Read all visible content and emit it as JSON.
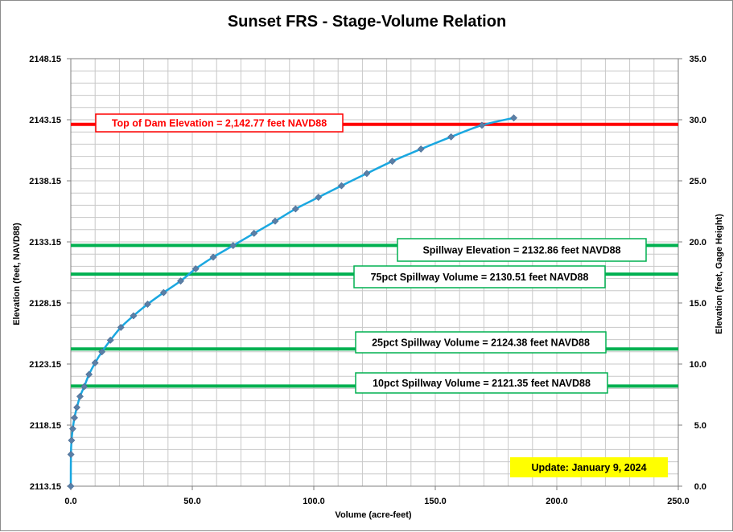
{
  "chart_data": {
    "type": "line",
    "title": "Sunset FRS - Stage-Volume Relation",
    "xlabel": "Volume (acre-feet)",
    "ylabel": "Elevation  (feet, NAVD88)",
    "y2label": "Elevation  (feet, Gage  Height)",
    "xlim": [
      0,
      250
    ],
    "ylim": [
      2113.15,
      2148.15
    ],
    "y2lim": [
      0,
      35
    ],
    "x_ticks": [
      "0.0",
      "50.0",
      "100.0",
      "150.0",
      "200.0",
      "250.0"
    ],
    "y_ticks": [
      "2113.15",
      "2118.15",
      "2123.15",
      "2128.15",
      "2133.15",
      "2138.15",
      "2143.15",
      "2148.15"
    ],
    "y2_ticks": [
      "0.0",
      "5.0",
      "10.0",
      "15.0",
      "20.0",
      "25.0",
      "30.0",
      "35.0"
    ],
    "grid": true,
    "series": [
      {
        "color": "#1aa7e0",
        "marker_color": "#5b7fa6",
        "x": [
          0.0,
          0.05,
          0.3,
          0.8,
          1.5,
          2.5,
          3.8,
          5.5,
          7.5,
          10.0,
          12.8,
          16.3,
          20.6,
          25.8,
          31.6,
          38.2,
          45.2,
          51.4,
          58.6,
          66.8,
          75.4,
          84.1,
          92.5,
          101.9,
          111.4,
          121.8,
          132.3,
          144.1,
          156.5,
          169.2,
          182.3
        ],
        "y": [
          2113.15,
          2115.75,
          2116.9,
          2117.85,
          2118.75,
          2119.6,
          2120.5,
          2121.3,
          2122.3,
          2123.25,
          2124.15,
          2125.1,
          2126.15,
          2127.1,
          2128.05,
          2129.0,
          2129.95,
          2130.95,
          2131.9,
          2132.85,
          2133.85,
          2134.85,
          2135.85,
          2136.8,
          2137.75,
          2138.75,
          2139.75,
          2140.75,
          2141.75,
          2142.7,
          2143.3
        ]
      }
    ],
    "reference_lines": [
      {
        "y": 2142.77,
        "color": "#ff0000",
        "label": "Top of Dam Elevation = 2,142.77 feet NAVD88",
        "label_color": "#ff0000",
        "label_border": "#ff0000"
      },
      {
        "y": 2132.86,
        "color": "#00b050",
        "label": "Spillway Elevation = 2132.86  feet NAVD88",
        "label_color": "#000000",
        "label_border": "#00b050"
      },
      {
        "y": 2130.51,
        "color": "#00b050",
        "label": "75pct Spillway Volume = 2130.51  feet NAVD88",
        "label_color": "#000000",
        "label_border": "#00b050"
      },
      {
        "y": 2124.38,
        "color": "#00b050",
        "label": "25pct Spillway Volume = 2124.38  feet NAVD88",
        "label_color": "#000000",
        "label_border": "#00b050"
      },
      {
        "y": 2121.35,
        "color": "#00b050",
        "label": "10pct Spillway Volume = 2121.35  feet NAVD88",
        "label_color": "#000000",
        "label_border": "#00b050"
      }
    ],
    "update_note": "Update: January 9, 2024",
    "update_bg": "#ffff00"
  }
}
